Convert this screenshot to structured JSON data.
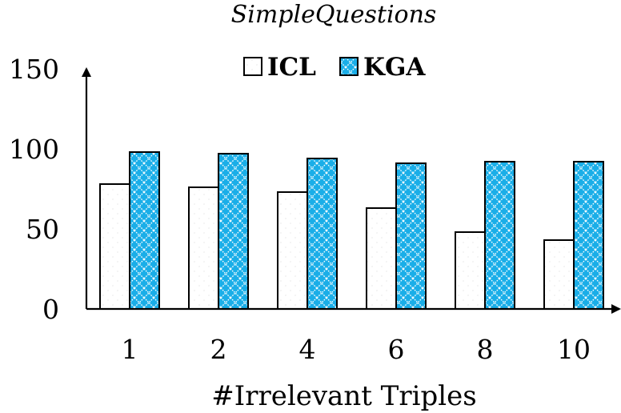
{
  "chart_data": {
    "type": "bar",
    "title": "SimpleQuestions",
    "xlabel": "#Irrelevant Triples",
    "ylabel": "",
    "categories": [
      "1",
      "2",
      "4",
      "6",
      "8",
      "10"
    ],
    "series": [
      {
        "name": "ICL",
        "values": [
          78,
          76,
          73,
          63,
          48,
          43
        ],
        "color": "#ffffff",
        "pattern": "dots"
      },
      {
        "name": "KGA",
        "values": [
          98,
          97,
          94,
          91,
          92,
          92
        ],
        "color": "#1aaee8",
        "pattern": "crosshatch"
      }
    ],
    "ylim": [
      0,
      150
    ],
    "yticks": [
      "0",
      "50",
      "100",
      "150"
    ],
    "grid": false,
    "legend_position": "top-center"
  }
}
